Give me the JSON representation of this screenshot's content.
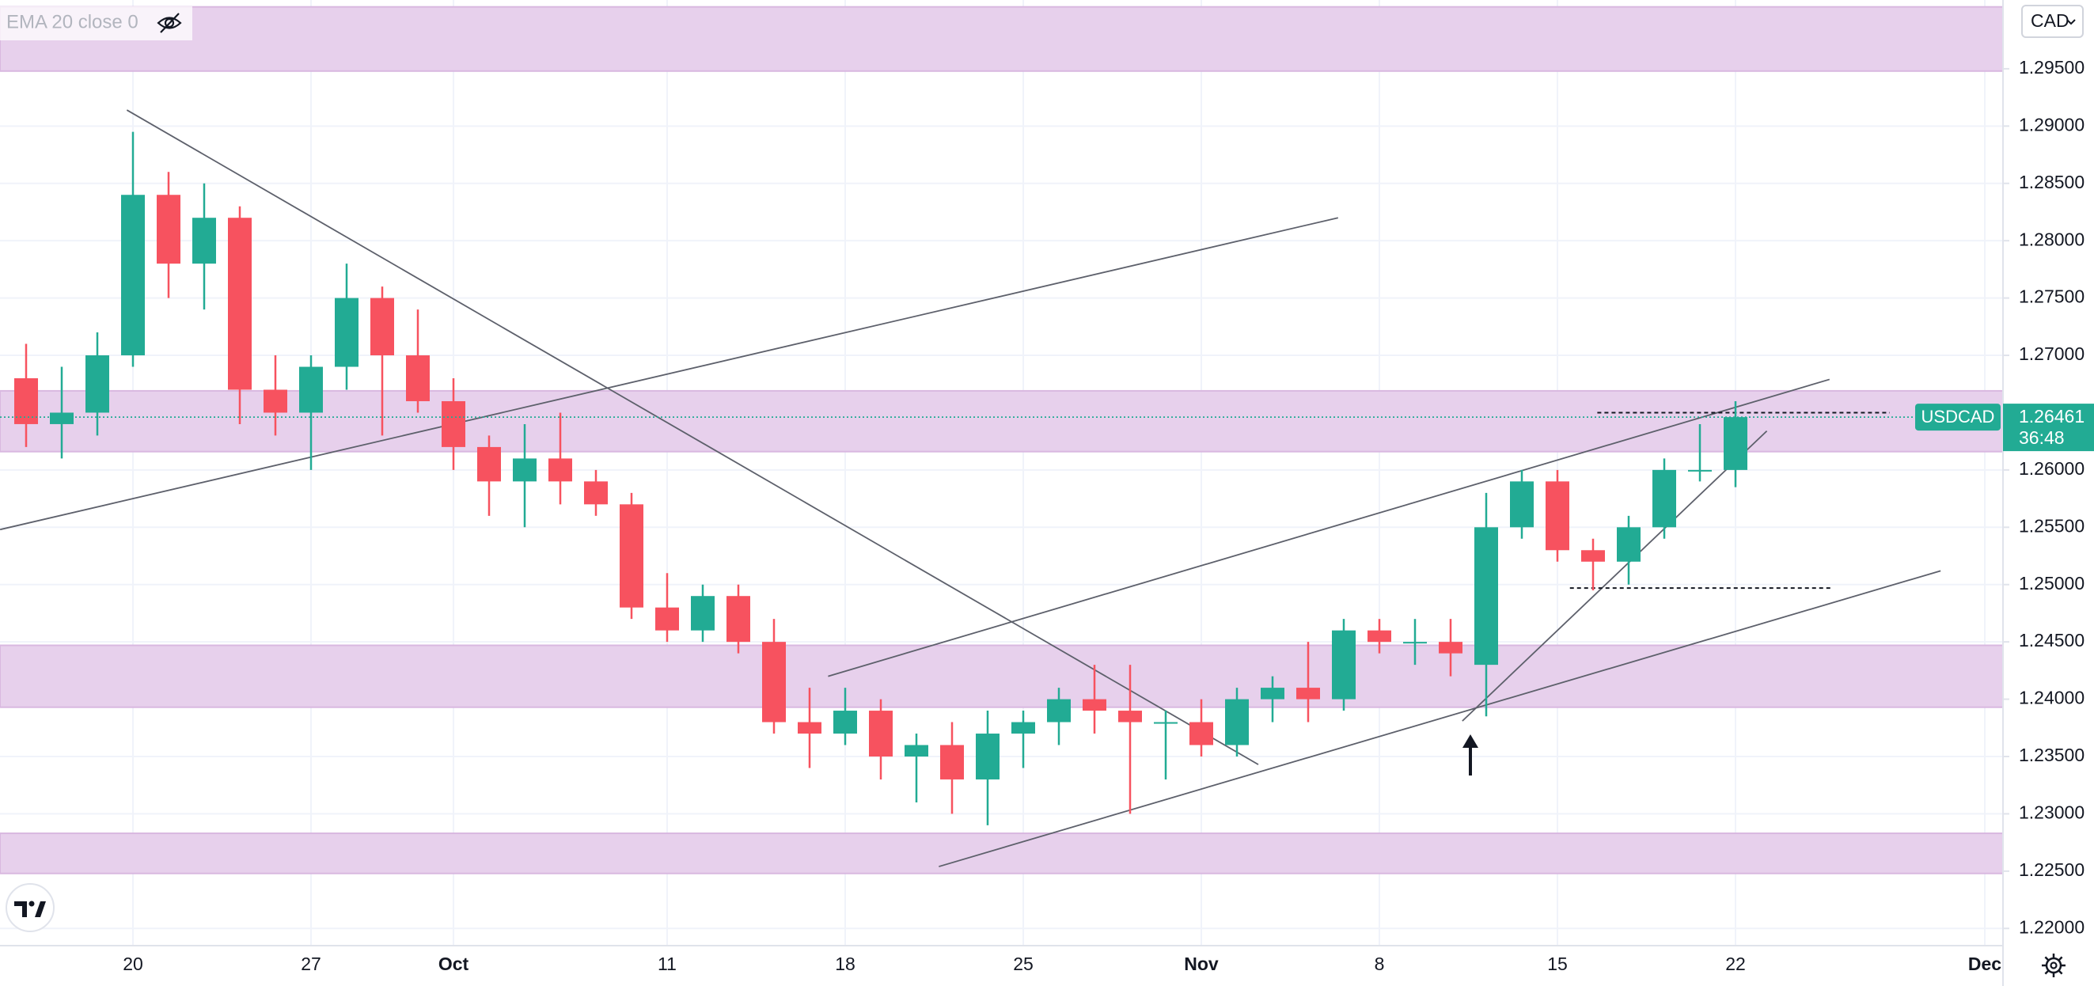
{
  "chart_data": {
    "type": "candlestick",
    "symbol": "USDCAD",
    "indicator": "EMA 20 close 0",
    "currency": "CAD",
    "countdown": "36:48",
    "last_price": 1.26461,
    "up_color": "#22ab94",
    "down_color": "#f7525f",
    "zone_color": "#e7d0ec",
    "grid": true,
    "categories": [
      null,
      null,
      null,
      "20",
      null,
      null,
      null,
      null,
      "27",
      null,
      null,
      null,
      "Oct",
      null,
      null,
      null,
      null,
      null,
      "11",
      null,
      null,
      null,
      null,
      "18",
      null,
      null,
      null,
      null,
      "25",
      null,
      null,
      null,
      null,
      "Nov",
      null,
      null,
      null,
      null,
      "8",
      null,
      null,
      null,
      null,
      "15",
      null,
      null,
      null,
      null,
      "22",
      null,
      null,
      null,
      null,
      null,
      null,
      "Dec"
    ],
    "open": [
      1.268,
      1.264,
      1.265,
      1.27,
      1.284,
      1.278,
      1.282,
      1.267,
      1.265,
      1.269,
      1.275,
      1.27,
      1.266,
      1.262,
      1.259,
      1.261,
      1.259,
      1.257,
      1.248,
      1.246,
      1.249,
      1.245,
      1.238,
      1.237,
      1.239,
      1.235,
      1.236,
      1.233,
      1.237,
      1.238,
      1.24,
      1.239,
      1.238,
      1.238,
      1.236,
      1.24,
      1.241,
      1.24,
      1.246,
      1.245,
      1.245,
      1.243,
      1.255,
      1.259,
      1.253,
      1.252,
      1.255,
      1.26,
      1.26,
      null,
      null,
      null,
      null,
      null,
      null,
      null
    ],
    "high": [
      1.271,
      1.269,
      1.272,
      1.2895,
      1.286,
      1.285,
      1.283,
      1.27,
      1.27,
      1.278,
      1.276,
      1.274,
      1.268,
      1.263,
      1.264,
      1.265,
      1.26,
      1.258,
      1.251,
      1.25,
      1.25,
      1.247,
      1.241,
      1.241,
      1.24,
      1.237,
      1.238,
      1.239,
      1.239,
      1.241,
      1.243,
      1.243,
      1.239,
      1.24,
      1.241,
      1.242,
      1.245,
      1.247,
      1.247,
      1.247,
      1.247,
      1.258,
      1.26,
      1.26,
      1.254,
      1.256,
      1.261,
      1.264,
      1.266,
      null,
      null,
      null,
      null,
      null,
      null,
      null
    ],
    "low": [
      1.262,
      1.261,
      1.263,
      1.269,
      1.275,
      1.274,
      1.264,
      1.263,
      1.26,
      1.267,
      1.263,
      1.265,
      1.26,
      1.256,
      1.255,
      1.257,
      1.256,
      1.247,
      1.245,
      1.245,
      1.244,
      1.237,
      1.234,
      1.236,
      1.233,
      1.231,
      1.23,
      1.229,
      1.234,
      1.236,
      1.237,
      1.23,
      1.233,
      1.235,
      1.235,
      1.238,
      1.238,
      1.239,
      1.244,
      1.243,
      1.242,
      1.2385,
      1.254,
      1.252,
      1.2495,
      1.25,
      1.254,
      1.259,
      1.2585,
      null,
      null,
      null,
      null,
      null,
      null,
      null
    ],
    "close": [
      1.264,
      1.265,
      1.27,
      1.284,
      1.278,
      1.282,
      1.267,
      1.265,
      1.269,
      1.275,
      1.27,
      1.266,
      1.262,
      1.259,
      1.261,
      1.259,
      1.257,
      1.248,
      1.246,
      1.249,
      1.245,
      1.238,
      1.237,
      1.239,
      1.235,
      1.236,
      1.233,
      1.237,
      1.238,
      1.24,
      1.239,
      1.238,
      1.238,
      1.236,
      1.24,
      1.241,
      1.24,
      1.246,
      1.245,
      1.245,
      1.244,
      1.255,
      1.259,
      1.253,
      1.252,
      1.255,
      1.26,
      1.26,
      1.26461,
      null,
      null,
      null,
      null,
      null,
      null,
      null
    ],
    "ylim": [
      1.2185,
      1.301
    ],
    "yticks": [
      {
        "value": 1.22,
        "label": "1.22000"
      },
      {
        "value": 1.225,
        "label": "1.22500"
      },
      {
        "value": 1.23,
        "label": "1.23000"
      },
      {
        "value": 1.235,
        "label": "1.23500"
      },
      {
        "value": 1.24,
        "label": "1.24000"
      },
      {
        "value": 1.245,
        "label": "1.24500"
      },
      {
        "value": 1.25,
        "label": "1.25000"
      },
      {
        "value": 1.255,
        "label": "1.25500"
      },
      {
        "value": 1.26,
        "label": "1.26000"
      },
      {
        "value": 1.265,
        "label": "1.26500"
      },
      {
        "value": 1.27,
        "label": "1.27000"
      },
      {
        "value": 1.275,
        "label": "1.27500"
      },
      {
        "value": 1.28,
        "label": "1.28000"
      },
      {
        "value": 1.285,
        "label": "1.28500"
      },
      {
        "value": 1.29,
        "label": "1.29000"
      },
      {
        "value": 1.295,
        "label": "1.29500"
      }
    ],
    "zones": [
      {
        "low": 1.2948,
        "high": 1.3004
      },
      {
        "low": 1.2616,
        "high": 1.2669
      },
      {
        "low": 1.2393,
        "high": 1.2447
      },
      {
        "low": 1.2248,
        "high": 1.2283
      }
    ],
    "trendlines": [
      {
        "x": [
          2.83,
          34.6
        ],
        "y": [
          1.2914,
          1.2343
        ]
      },
      {
        "x": [
          -0.73,
          36.84
        ],
        "y": [
          1.2548,
          1.282
        ]
      },
      {
        "x": [
          22.52,
          50.64
        ],
        "y": [
          1.242,
          1.2679
        ]
      },
      {
        "x": [
          25.63,
          53.76
        ],
        "y": [
          1.2254,
          1.2512
        ]
      },
      {
        "x": [
          40.33,
          48.88
        ],
        "y": [
          1.2381,
          1.2634
        ]
      }
    ],
    "levels": [
      {
        "x": [
          44.12,
          52.33
        ],
        "y": 1.265
      },
      {
        "x": [
          43.35,
          50.71
        ],
        "y": 1.2497
      }
    ]
  }
}
